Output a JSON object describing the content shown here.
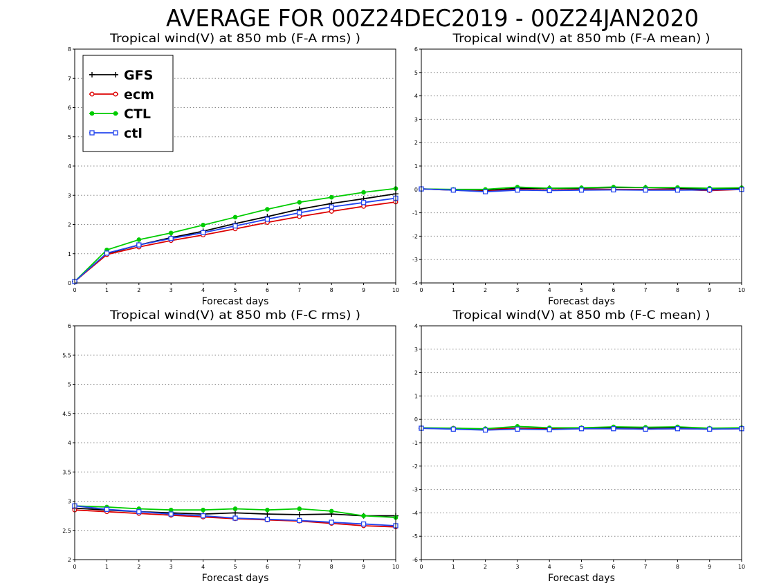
{
  "page_title": "AVERAGE FOR 00Z24DEC2019 - 00Z24JAN2020",
  "legend": [
    {
      "name": "GFS",
      "color": "#000000",
      "marker": "plus"
    },
    {
      "name": "ecm",
      "color": "#dd0000",
      "marker": "open-circle"
    },
    {
      "name": "CTL",
      "color": "#00cc00",
      "marker": "filled-circle"
    },
    {
      "name": "ctl",
      "color": "#2244ee",
      "marker": "open-square"
    }
  ],
  "chart_data": [
    {
      "type": "line",
      "title": "Tropical wind(V) at 850 mb (F-A rms) )",
      "xlabel": "Forecast days",
      "ylabel": "",
      "x": [
        0,
        1,
        2,
        3,
        4,
        5,
        6,
        7,
        8,
        9,
        10
      ],
      "xlim": [
        0,
        10
      ],
      "ylim": [
        0,
        8
      ],
      "yticks": [
        "0",
        "1",
        "2",
        "3",
        "4",
        "5",
        "6",
        "7",
        "8"
      ],
      "grid": "horizontal dotted",
      "legend_position": "top-left",
      "series": [
        {
          "name": "GFS",
          "values": [
            0.05,
            1.0,
            1.3,
            1.55,
            1.77,
            2.03,
            2.27,
            2.52,
            2.72,
            2.88,
            3.05
          ]
        },
        {
          "name": "ecm",
          "values": [
            0.05,
            0.97,
            1.23,
            1.45,
            1.64,
            1.85,
            2.07,
            2.27,
            2.45,
            2.62,
            2.77
          ]
        },
        {
          "name": "CTL",
          "values": [
            0.05,
            1.13,
            1.48,
            1.71,
            1.98,
            2.25,
            2.52,
            2.76,
            2.93,
            3.1,
            3.23
          ]
        },
        {
          "name": "ctl",
          "values": [
            0.05,
            1.02,
            1.3,
            1.52,
            1.72,
            1.95,
            2.18,
            2.4,
            2.6,
            2.75,
            2.9
          ]
        }
      ]
    },
    {
      "type": "line",
      "title": "Tropical wind(V) at 850 mb (F-A mean) )",
      "xlabel": "Forecast days",
      "ylabel": "",
      "x": [
        0,
        1,
        2,
        3,
        4,
        5,
        6,
        7,
        8,
        9,
        10
      ],
      "xlim": [
        0,
        10
      ],
      "ylim": [
        -4,
        6
      ],
      "yticks": [
        "-4",
        "-3",
        "-2",
        "-1",
        "0",
        "1",
        "2",
        "3",
        "4",
        "5",
        "6"
      ],
      "grid": "horizontal dotted",
      "series": [
        {
          "name": "GFS",
          "values": [
            0.02,
            -0.02,
            -0.05,
            0.05,
            0.05,
            0.05,
            0.08,
            0.08,
            0.05,
            0.0,
            0.05
          ]
        },
        {
          "name": "ecm",
          "values": [
            0.02,
            -0.03,
            -0.08,
            0.0,
            -0.02,
            0.0,
            0.0,
            0.0,
            0.0,
            -0.05,
            0.0
          ]
        },
        {
          "name": "CTL",
          "values": [
            0.02,
            0.0,
            0.0,
            0.1,
            0.05,
            0.07,
            0.1,
            0.08,
            0.08,
            0.05,
            0.07
          ]
        },
        {
          "name": "ctl",
          "values": [
            0.02,
            -0.03,
            -0.1,
            -0.03,
            -0.05,
            -0.03,
            -0.02,
            -0.03,
            -0.03,
            -0.02,
            0.0
          ]
        }
      ]
    },
    {
      "type": "line",
      "title": "Tropical wind(V) at 850 mb (F-C rms) )",
      "xlabel": "Forecast days",
      "ylabel": "",
      "x": [
        0,
        1,
        2,
        3,
        4,
        5,
        6,
        7,
        8,
        9,
        10
      ],
      "xlim": [
        0,
        10
      ],
      "ylim": [
        2,
        6
      ],
      "yticks": [
        "2",
        "2.5",
        "3",
        "3.5",
        "4",
        "4.5",
        "5",
        "5.5",
        "6"
      ],
      "grid": "horizontal dotted",
      "series": [
        {
          "name": "GFS",
          "values": [
            2.88,
            2.85,
            2.82,
            2.8,
            2.78,
            2.8,
            2.78,
            2.77,
            2.78,
            2.75,
            2.75
          ]
        },
        {
          "name": "ecm",
          "values": [
            2.85,
            2.82,
            2.79,
            2.76,
            2.73,
            2.7,
            2.68,
            2.66,
            2.62,
            2.58,
            2.56
          ]
        },
        {
          "name": "CTL",
          "values": [
            2.92,
            2.9,
            2.87,
            2.85,
            2.85,
            2.87,
            2.85,
            2.87,
            2.83,
            2.75,
            2.72
          ]
        },
        {
          "name": "ctl",
          "values": [
            2.92,
            2.86,
            2.82,
            2.78,
            2.75,
            2.71,
            2.69,
            2.67,
            2.64,
            2.61,
            2.58
          ]
        }
      ]
    },
    {
      "type": "line",
      "title": "Tropical wind(V) at 850 mb (F-C mean) )",
      "xlabel": "Forecast days",
      "ylabel": "",
      "x": [
        0,
        1,
        2,
        3,
        4,
        5,
        6,
        7,
        8,
        9,
        10
      ],
      "xlim": [
        0,
        10
      ],
      "ylim": [
        -6,
        4
      ],
      "yticks": [
        "-6",
        "-5",
        "-4",
        "-3",
        "-2",
        "-1",
        "0",
        "1",
        "2",
        "3",
        "4"
      ],
      "grid": "horizontal dotted",
      "series": [
        {
          "name": "GFS",
          "values": [
            -0.38,
            -0.4,
            -0.42,
            -0.38,
            -0.4,
            -0.38,
            -0.36,
            -0.38,
            -0.36,
            -0.4,
            -0.38
          ]
        },
        {
          "name": "ecm",
          "values": [
            -0.38,
            -0.38,
            -0.42,
            -0.4,
            -0.42,
            -0.4,
            -0.4,
            -0.42,
            -0.4,
            -0.42,
            -0.4
          ]
        },
        {
          "name": "CTL",
          "values": [
            -0.36,
            -0.38,
            -0.4,
            -0.3,
            -0.36,
            -0.36,
            -0.32,
            -0.34,
            -0.32,
            -0.38,
            -0.36
          ]
        },
        {
          "name": "ctl",
          "values": [
            -0.38,
            -0.42,
            -0.46,
            -0.42,
            -0.44,
            -0.4,
            -0.4,
            -0.42,
            -0.4,
            -0.42,
            -0.4
          ]
        }
      ]
    }
  ]
}
